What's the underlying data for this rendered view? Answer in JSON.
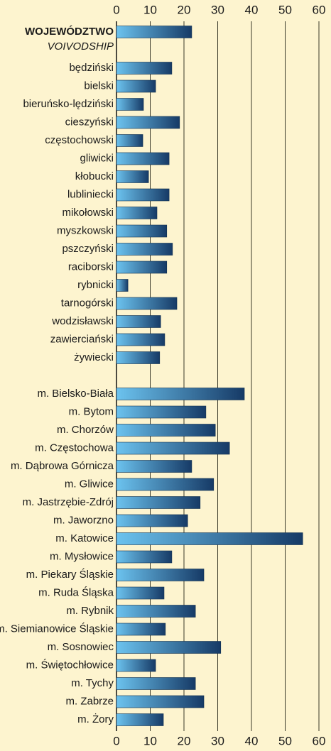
{
  "chart_data": {
    "type": "bar",
    "orientation": "horizontal",
    "categories": [
      "WOJEWÓDZTWO",
      "będziński",
      "bielski",
      "bieruńsko-lędziński",
      "cieszyński",
      "częstochowski",
      "gliwicki",
      "kłobucki",
      "lubliniecki",
      "mikołowski",
      "myszkowski",
      "pszczyński",
      "raciborski",
      "rybnicki",
      "tarnogórski",
      "wodzisławski",
      "zawierciański",
      "żywiecki",
      null,
      "m. Bielsko-Biała",
      "m. Bytom",
      "m. Chorzów",
      "m. Częstochowa",
      "m. Dąbrowa Górnicza",
      "m. Gliwice",
      "m. Jastrzębie-Zdrój",
      "m. Jaworzno",
      "m. Katowice",
      "m. Mysłowice",
      "m. Piekary Śląskie",
      "m. Ruda Śląska",
      "m. Rybnik",
      "m. Siemianowice Śląskie",
      "m. Sosnowiec",
      "m. Świętochłowice",
      "m. Tychy",
      "m. Zabrze",
      "m. Żory"
    ],
    "first_category_translation": "VOIVODSHIP",
    "values": [
      22.3,
      16.4,
      11.6,
      8.0,
      18.7,
      7.8,
      15.6,
      9.5,
      15.6,
      12.0,
      14.9,
      16.6,
      14.9,
      3.4,
      17.9,
      13.1,
      14.3,
      12.8,
      null,
      37.9,
      26.5,
      29.3,
      33.5,
      22.3,
      28.8,
      24.8,
      21.1,
      55.2,
      16.4,
      25.9,
      14.1,
      23.4,
      14.5,
      30.9,
      11.6,
      23.4,
      25.9,
      13.9
    ],
    "gradient": [
      "#6cc3ef",
      "#163a66"
    ],
    "xlim": [
      0,
      60
    ],
    "xticks": [
      0,
      10,
      20,
      30,
      40,
      50,
      60
    ],
    "grid": true
  }
}
